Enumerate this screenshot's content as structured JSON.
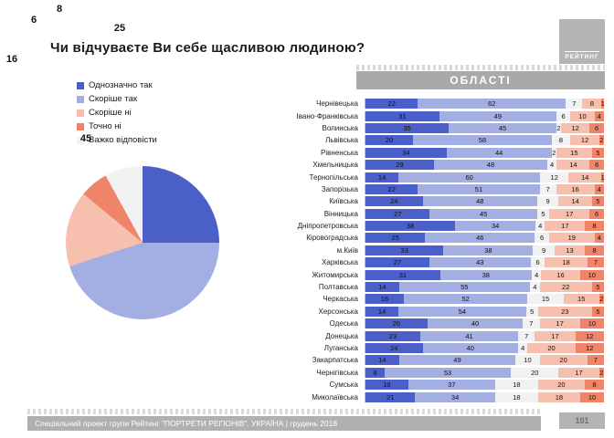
{
  "slide": {
    "title": "Чи відчуваєте Ви себе щасливою людиною?",
    "region_header": "ОБЛАСТІ",
    "logo_text": "РЕЙТИНГ",
    "footer_text": "Спеціальний проект групи Рейтинг \"ПОРТРЕТИ РЕГІОНІВ\". УКРАЇНА | грудень 2018",
    "page_number": "101"
  },
  "colors": {
    "definitely_yes": "#4a5fc8",
    "rather_yes": "#a3aee2",
    "rather_no": "#f7bfae",
    "definitely_no": "#f08468",
    "hard_to_say": "#f2f2f2",
    "band_gray": "#a9a9a9",
    "logo_gray": "#b4b4b4"
  },
  "legend": [
    {
      "label": "Однозначно так",
      "color": "#4a5fc8"
    },
    {
      "label": "Скоріше так",
      "color": "#a3aee2"
    },
    {
      "label": "Скоріше ні",
      "color": "#f7bfae"
    },
    {
      "label": "Точно ні",
      "color": "#f08468"
    },
    {
      "label": "Важко відповісти",
      "color": "#f2f2f2"
    }
  ],
  "chart_data": [
    {
      "type": "pie",
      "title": "Чи відчуваєте Ви себе щасливою людиною?",
      "labels": [
        "Однозначно так",
        "Скоріше так",
        "Скоріше ні",
        "Точно ні",
        "Важко відповісти"
      ],
      "values": [
        25,
        45,
        16,
        6,
        8
      ],
      "colors": [
        "#4a5fc8",
        "#a3aee2",
        "#f7bfae",
        "#f08468",
        "#f2f2f2"
      ],
      "start_angle": "top",
      "direction": "clockwise",
      "legend_position": "top-left"
    },
    {
      "type": "bar",
      "subtype": "stacked-horizontal-100pct",
      "title": "ОБЛАСТІ",
      "categories": [
        "Чернівецька",
        "Івано-Франківська",
        "Волинська",
        "Львівська",
        "Рівненська",
        "Хмельницька",
        "Тернопільська",
        "Запорізька",
        "Київська",
        "Вінницька",
        "Дніпропетровська",
        "Кіровоградська",
        "м.Київ",
        "Харківська",
        "Житомирська",
        "Полтавська",
        "Черкаська",
        "Херсонська",
        "Одеська",
        "Донецька",
        "Луганська",
        "Закарпатська",
        "Чернігівська",
        "Сумська",
        "Миколаївська"
      ],
      "series": [
        {
          "key": "definitely-yes",
          "name": "Однозначно так",
          "color": "#4a5fc8",
          "values": [
            22,
            31,
            35,
            20,
            34,
            29,
            14,
            22,
            24,
            27,
            38,
            25,
            33,
            27,
            31,
            14,
            16,
            14,
            26,
            23,
            24,
            14,
            8,
            18,
            21
          ]
        },
        {
          "key": "rather-yes",
          "name": "Скоріше так",
          "color": "#a3aee2",
          "values": [
            62,
            49,
            45,
            58,
            44,
            48,
            60,
            51,
            48,
            45,
            34,
            46,
            38,
            43,
            38,
            55,
            52,
            54,
            40,
            41,
            40,
            49,
            53,
            37,
            34
          ]
        },
        {
          "key": "hard-to-say",
          "name": "Важко відповісти",
          "color": "#f2f2f2",
          "values": [
            7,
            6,
            2,
            8,
            2,
            4,
            12,
            7,
            9,
            5,
            4,
            6,
            9,
            6,
            4,
            4,
            15,
            5,
            7,
            7,
            4,
            10,
            20,
            18,
            18
          ]
        },
        {
          "key": "rather-no",
          "name": "Скоріше ні",
          "color": "#f7bfae",
          "values": [
            8,
            10,
            12,
            12,
            15,
            14,
            14,
            16,
            14,
            17,
            17,
            19,
            13,
            18,
            16,
            22,
            15,
            23,
            17,
            17,
            20,
            20,
            17,
            20,
            18
          ]
        },
        {
          "key": "definitely-no",
          "name": "Точно ні",
          "color": "#f08468",
          "values": [
            1,
            4,
            6,
            2,
            5,
            6,
            1,
            4,
            5,
            6,
            8,
            4,
            8,
            7,
            10,
            5,
            2,
            5,
            10,
            12,
            12,
            7,
            2,
            8,
            10
          ]
        }
      ],
      "xlim": [
        0,
        100
      ],
      "grid": false,
      "value_labels": "inside"
    }
  ]
}
